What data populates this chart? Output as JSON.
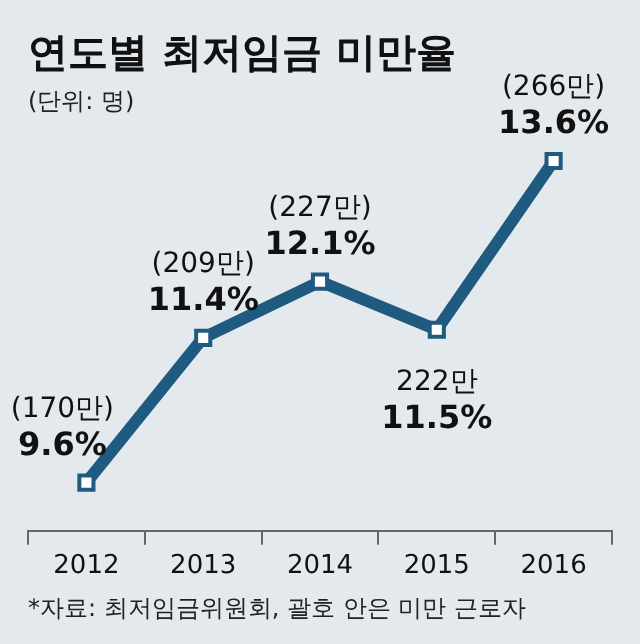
{
  "chart_data": {
    "type": "line",
    "title": "연도별 최저임금 미만율",
    "subtitle": "(단위: 명)",
    "categories": [
      "2012",
      "2013",
      "2014",
      "2015",
      "2016"
    ],
    "series": [
      {
        "color": "#1f5a80",
        "values": [
          9.6,
          11.4,
          12.1,
          11.5,
          13.6
        ],
        "value_labels": [
          "(170만)\n9.6%",
          "(209만)\n11.4%",
          "(227만)\n12.1%",
          "222만\n11.5%",
          "(266만)\n13.6%"
        ]
      }
    ],
    "tick_labels": "x",
    "marker": "square",
    "line_style": "solid",
    "grid": false,
    "legend": false,
    "annotations": [
      "*자료: 최저임금위원회, 괄호 안은 미만 근로자"
    ]
  }
}
